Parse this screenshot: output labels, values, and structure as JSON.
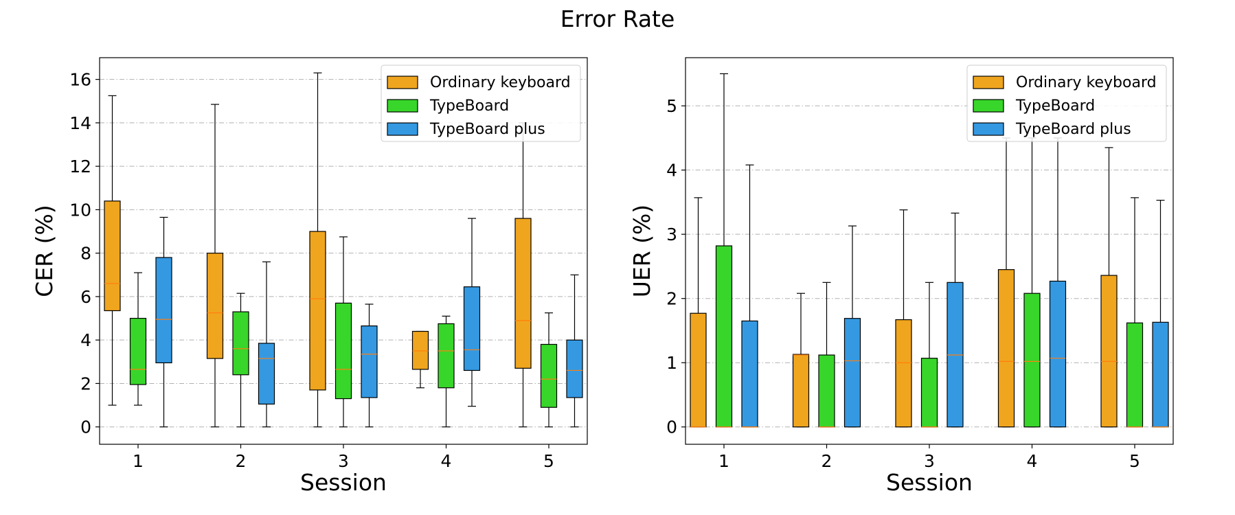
{
  "figure": {
    "title": "Error Rate"
  },
  "legend": {
    "placement": "upper right",
    "entries": [
      {
        "label": "Ordinary keyboard",
        "color": "#F0A51E"
      },
      {
        "label": "TypeBoard",
        "color": "#38D62A"
      },
      {
        "label": "TypeBoard plus",
        "color": "#3599E2"
      }
    ]
  },
  "chart_data": [
    {
      "type": "box",
      "xlabel": "Session",
      "ylabel": "CER (%)",
      "categories": [
        "1",
        "2",
        "3",
        "4",
        "5"
      ],
      "ylim": [
        -0.8,
        17.0
      ],
      "yticks": [
        0,
        2,
        4,
        6,
        8,
        10,
        12,
        14,
        16
      ],
      "grid": "horizontal dash-dot",
      "series": [
        {
          "name": "Ordinary keyboard",
          "color": "#F0A51E",
          "boxes": [
            {
              "whislo": 1.0,
              "q1": 5.35,
              "med": 6.6,
              "q3": 10.4,
              "whishi": 15.25
            },
            {
              "whislo": 0.0,
              "q1": 3.15,
              "med": 5.25,
              "q3": 8.0,
              "whishi": 14.85
            },
            {
              "whislo": 0.0,
              "q1": 1.7,
              "med": 5.9,
              "q3": 9.0,
              "whishi": 16.3
            },
            {
              "whislo": 1.8,
              "q1": 2.65,
              "med": 3.5,
              "q3": 4.4,
              "whishi": 4.4
            },
            {
              "whislo": 0.0,
              "q1": 2.7,
              "med": 4.9,
              "q3": 9.6,
              "whishi": 14.0
            }
          ]
        },
        {
          "name": "TypeBoard",
          "color": "#38D62A",
          "boxes": [
            {
              "whislo": 1.0,
              "q1": 1.95,
              "med": 2.65,
              "q3": 5.0,
              "whishi": 7.1
            },
            {
              "whislo": 0.0,
              "q1": 2.4,
              "med": 3.6,
              "q3": 5.3,
              "whishi": 6.15
            },
            {
              "whislo": 0.0,
              "q1": 1.3,
              "med": 2.65,
              "q3": 5.7,
              "whishi": 8.75
            },
            {
              "whislo": 0.0,
              "q1": 1.8,
              "med": 3.5,
              "q3": 4.75,
              "whishi": 5.1
            },
            {
              "whislo": 0.0,
              "q1": 0.9,
              "med": 2.2,
              "q3": 3.8,
              "whishi": 5.25
            }
          ]
        },
        {
          "name": "TypeBoard plus",
          "color": "#3599E2",
          "boxes": [
            {
              "whislo": 0.0,
              "q1": 2.95,
              "med": 4.95,
              "q3": 7.8,
              "whishi": 9.65
            },
            {
              "whislo": 0.0,
              "q1": 1.05,
              "med": 3.15,
              "q3": 3.85,
              "whishi": 7.6
            },
            {
              "whislo": 0.0,
              "q1": 1.35,
              "med": 3.35,
              "q3": 4.65,
              "whishi": 5.65
            },
            {
              "whislo": 0.95,
              "q1": 2.6,
              "med": 3.55,
              "q3": 6.45,
              "whishi": 9.6
            },
            {
              "whislo": 0.0,
              "q1": 1.35,
              "med": 2.6,
              "q3": 4.0,
              "whishi": 7.0
            }
          ]
        }
      ]
    },
    {
      "type": "box",
      "xlabel": "Session",
      "ylabel": "UER (%)",
      "categories": [
        "1",
        "2",
        "3",
        "4",
        "5"
      ],
      "ylim": [
        -0.27,
        5.75
      ],
      "yticks": [
        0,
        1,
        2,
        3,
        4,
        5
      ],
      "grid": "horizontal dash-dot",
      "series": [
        {
          "name": "Ordinary keyboard",
          "color": "#F0A51E",
          "boxes": [
            {
              "whislo": 0.0,
              "q1": 0.0,
              "med": 0.0,
              "q3": 1.77,
              "whishi": 3.57
            },
            {
              "whislo": 0.0,
              "q1": 0.0,
              "med": 1.12,
              "q3": 1.13,
              "whishi": 2.08
            },
            {
              "whislo": 0.0,
              "q1": 0.0,
              "med": 1.0,
              "q3": 1.67,
              "whishi": 3.38
            },
            {
              "whislo": 0.0,
              "q1": 0.0,
              "med": 1.02,
              "q3": 2.45,
              "whishi": 4.5
            },
            {
              "whislo": 0.0,
              "q1": 0.0,
              "med": 1.02,
              "q3": 2.36,
              "whishi": 4.35
            }
          ]
        },
        {
          "name": "TypeBoard",
          "color": "#38D62A",
          "boxes": [
            {
              "whislo": 0.0,
              "q1": 0.0,
              "med": 0.0,
              "q3": 2.82,
              "whishi": 5.5
            },
            {
              "whislo": 0.0,
              "q1": 0.0,
              "med": 0.0,
              "q3": 1.12,
              "whishi": 2.25
            },
            {
              "whislo": 0.0,
              "q1": 0.0,
              "med": 0.0,
              "q3": 1.07,
              "whishi": 2.25
            },
            {
              "whislo": 0.0,
              "q1": 0.0,
              "med": 1.02,
              "q3": 2.08,
              "whishi": 4.5
            },
            {
              "whislo": 0.0,
              "q1": 0.0,
              "med": 0.0,
              "q3": 1.62,
              "whishi": 3.57
            }
          ]
        },
        {
          "name": "TypeBoard plus",
          "color": "#3599E2",
          "boxes": [
            {
              "whislo": 0.0,
              "q1": 0.0,
              "med": 0.0,
              "q3": 1.65,
              "whishi": 4.08
            },
            {
              "whislo": 0.0,
              "q1": 0.0,
              "med": 1.03,
              "q3": 1.69,
              "whishi": 3.13
            },
            {
              "whislo": 0.0,
              "q1": 0.0,
              "med": 1.12,
              "q3": 2.25,
              "whishi": 3.33
            },
            {
              "whislo": 0.0,
              "q1": 0.0,
              "med": 1.07,
              "q3": 2.27,
              "whishi": 4.5
            },
            {
              "whislo": 0.0,
              "q1": 0.0,
              "med": 0.0,
              "q3": 1.63,
              "whishi": 3.53
            }
          ]
        }
      ]
    }
  ]
}
